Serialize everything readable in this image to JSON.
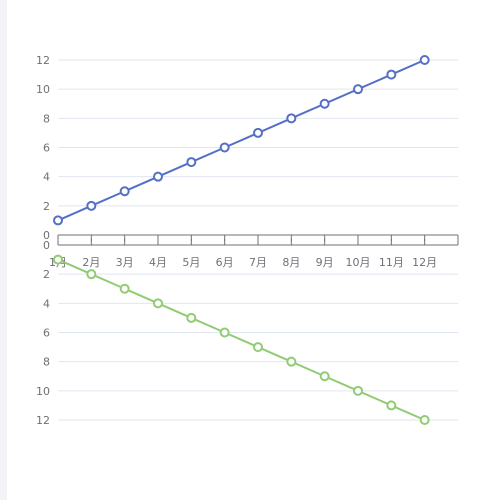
{
  "chart_data": [
    {
      "type": "line",
      "categories": [
        "1月",
        "2月",
        "3月",
        "4月",
        "5月",
        "6月",
        "7月",
        "8月",
        "9月",
        "10月",
        "11月",
        "12月"
      ],
      "series": [
        {
          "values": [
            1,
            2,
            3,
            4,
            5,
            6,
            7,
            8,
            9,
            10,
            11,
            12
          ],
          "color": "#5470c6"
        }
      ],
      "ylim": [
        0,
        12
      ],
      "yticks": [
        0,
        2,
        4,
        6,
        8,
        10,
        12
      ],
      "inverse": false,
      "grid": true
    },
    {
      "type": "line",
      "categories": [
        "1月",
        "2月",
        "3月",
        "4月",
        "5月",
        "6月",
        "7月",
        "8月",
        "9月",
        "10月",
        "11月",
        "12月"
      ],
      "series": [
        {
          "values": [
            1,
            2,
            3,
            4,
            5,
            6,
            7,
            8,
            9,
            10,
            11,
            12
          ],
          "color": "#91cc75"
        }
      ],
      "ylim": [
        0,
        12
      ],
      "yticks": [
        0,
        2,
        4,
        6,
        8,
        10,
        12
      ],
      "inverse": true,
      "grid": true
    }
  ]
}
